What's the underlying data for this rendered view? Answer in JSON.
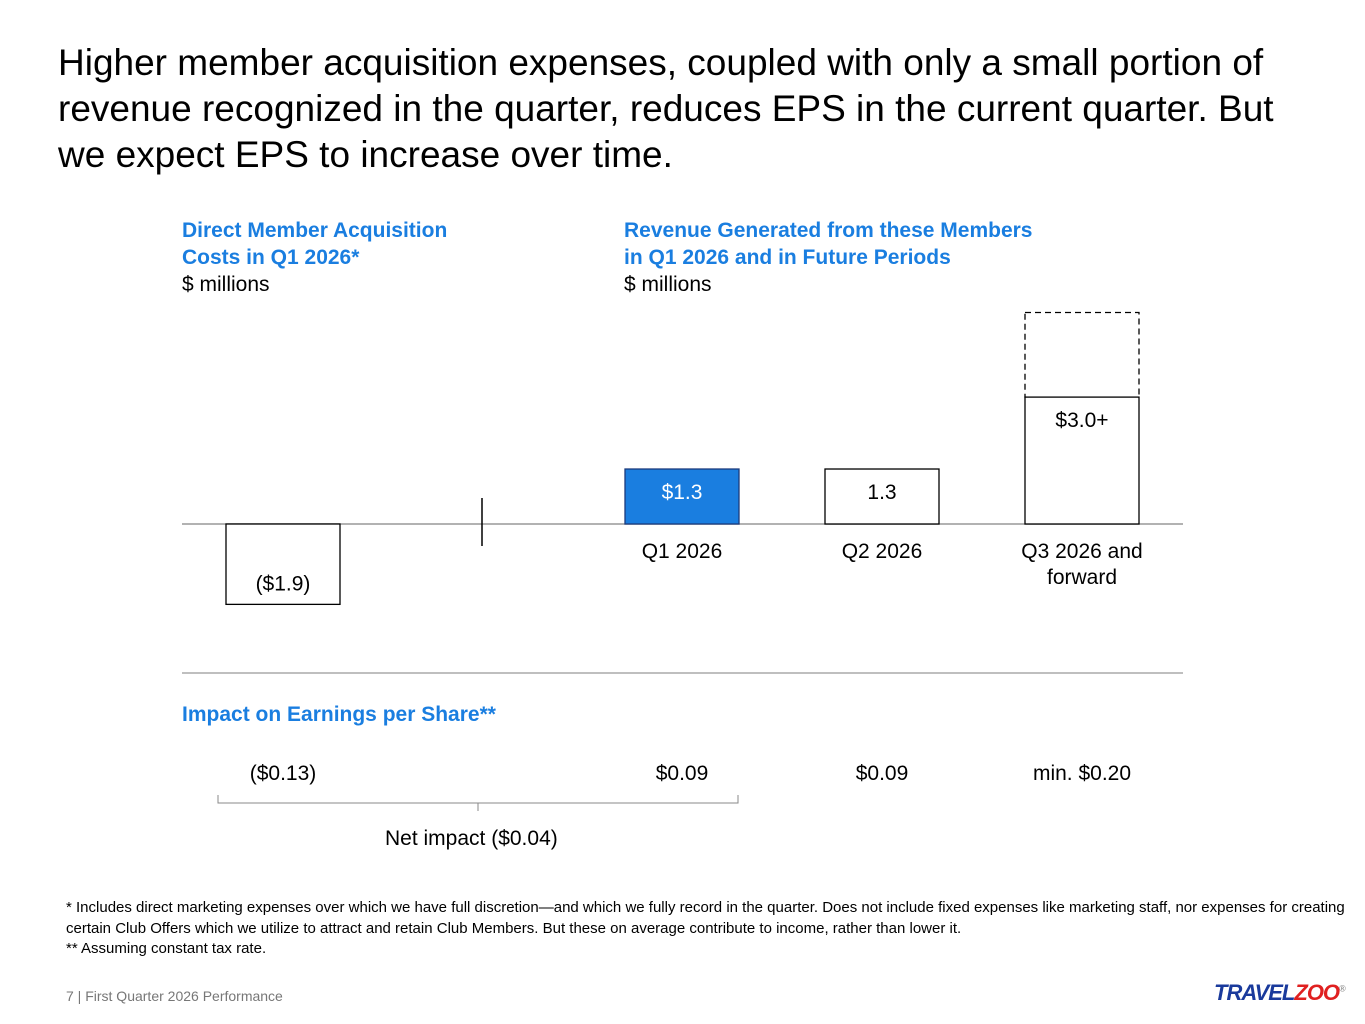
{
  "title": "Higher member acquisition expenses, coupled with only a small portion of revenue recognized in the quarter, reduces EPS in the current quarter. But we expect EPS to increase over time.",
  "left_header": {
    "line1": "Direct Member Acquisition",
    "line2": "Costs in Q1 2026*",
    "unit": "$ millions"
  },
  "right_header": {
    "line1": "Revenue Generated from these Members",
    "line2": "in Q1 2026 and in Future Periods",
    "unit": "$ millions"
  },
  "eps": {
    "heading": "Impact on Earnings per Share**",
    "values": [
      "($0.13)",
      "$0.09",
      "$0.09",
      "min. $0.20"
    ],
    "net": "Net impact ($0.04)"
  },
  "footnotes": [
    "* Includes direct marketing expenses over which we have full discretion—and which we fully record in the quarter. Does not include fixed expenses like marketing staff, nor expenses for creating certain Club Offers which we utilize to attract and retain Club Members. But these on average contribute to income, rather than lower it.",
    "** Assuming constant tax rate."
  ],
  "page_footer": "7 | First Quarter 2026 Performance",
  "logo": {
    "part1": "TRAVEL",
    "part2": "ZOO",
    "mark": "®"
  },
  "colors": {
    "accent": "#1a7ee0",
    "logo_blue": "#1a3a9c",
    "logo_red": "#e02020"
  },
  "chart_data": {
    "type": "bar",
    "categories": [
      "Acquisition costs",
      "Q1 2026",
      "Q2 2026",
      "Q3 2026 and forward"
    ],
    "values": [
      -1.9,
      1.3,
      1.3,
      3.0
    ],
    "data_labels": [
      "($1.9)",
      "$1.3",
      "1.3",
      "$3.0+"
    ],
    "upside_estimate_top": 5.0,
    "highlight_index": 1,
    "ylabel": "$ millions"
  }
}
